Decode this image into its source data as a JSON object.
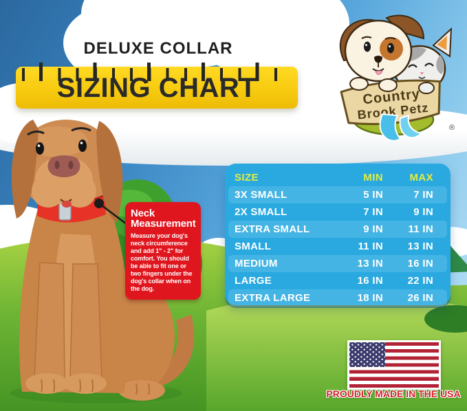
{
  "header": {
    "kicker": "DELUXE COLLAR",
    "title": "SIZING CHART"
  },
  "brand": {
    "name_line1": "Country",
    "name_line2": "Brook Petz",
    "registered_mark": "®"
  },
  "callout": {
    "title": "Neck Measurement",
    "body": "Measure your dog's neck circumference and add 1\" - 2\" for comfort. You should be able to fit one or two fingers under the dog's collar when on the dog."
  },
  "chart_data": {
    "type": "table",
    "title": "Deluxe Collar Sizing Chart",
    "columns": [
      "SIZE",
      "MIN",
      "MAX"
    ],
    "rows": [
      {
        "size": "3X SMALL",
        "min": "5 IN",
        "max": "7 IN"
      },
      {
        "size": "2X SMALL",
        "min": "7 IN",
        "max": "9 IN"
      },
      {
        "size": "EXTRA SMALL",
        "min": "9 IN",
        "max": "11 IN"
      },
      {
        "size": "SMALL",
        "min": "11 IN",
        "max": "13 IN"
      },
      {
        "size": "MEDIUM",
        "min": "13 IN",
        "max": "16 IN"
      },
      {
        "size": "LARGE",
        "min": "16 IN",
        "max": "22 IN"
      },
      {
        "size": "EXTRA LARGE",
        "min": "18 IN",
        "max": "26 IN"
      }
    ],
    "units": "inches (neck circumference)"
  },
  "footer": {
    "made_in_label": "PROUDLY MADE IN THE USA"
  },
  "colors": {
    "table_blue": "#29A9E0",
    "table_header_yellow": "#E2EC3F",
    "ruler_yellow": "#F6C90E",
    "callout_red": "#E0161F",
    "flag_red": "#B22234",
    "flag_blue": "#3C3B6E",
    "usa_text_red": "#D2232A"
  }
}
